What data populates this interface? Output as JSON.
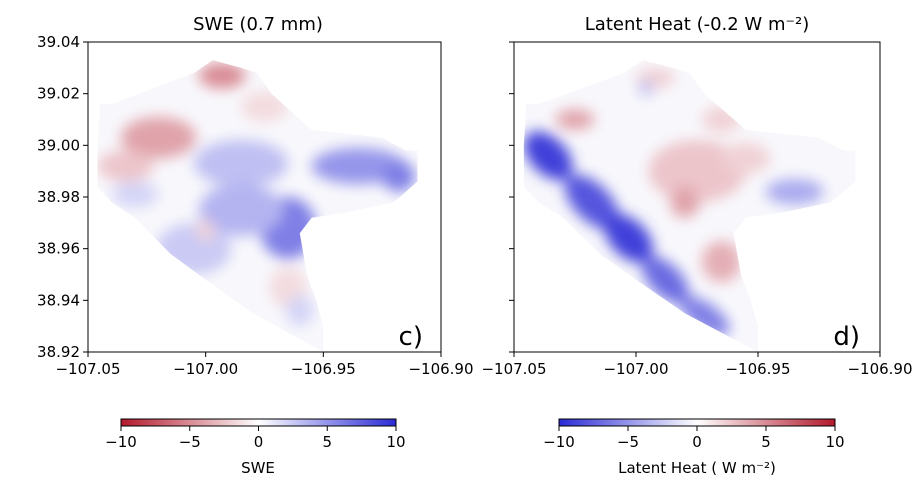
{
  "chart_data": [
    {
      "type": "heatmap",
      "panel_letter": "c)",
      "title": "SWE (0.7 mm)",
      "xlim": [
        -107.05,
        -106.9
      ],
      "ylim": [
        38.92,
        39.04
      ],
      "x_ticks": [
        -107.05,
        -107.0,
        -106.95,
        -106.9
      ],
      "y_ticks": [
        38.92,
        38.94,
        38.96,
        38.98,
        39.0,
        39.02,
        39.04
      ],
      "x_tick_labels": [
        "−107.05",
        "−107.00",
        "−106.95",
        "−106.90"
      ],
      "y_tick_labels": [
        "38.92",
        "38.94",
        "38.96",
        "38.98",
        "39.00",
        "39.02",
        "39.04"
      ],
      "domain_polygon": [
        [
          -107.045,
          39.016
        ],
        [
          -107.04,
          39.016
        ],
        [
          -107.005,
          39.028
        ],
        [
          -106.997,
          39.033
        ],
        [
          -106.985,
          39.03
        ],
        [
          -106.978,
          39.028
        ],
        [
          -106.972,
          39.02
        ],
        [
          -106.955,
          39.006
        ],
        [
          -106.925,
          39.003
        ],
        [
          -106.915,
          38.998
        ],
        [
          -106.91,
          38.998
        ],
        [
          -106.91,
          38.986
        ],
        [
          -106.92,
          38.978
        ],
        [
          -106.94,
          38.974
        ],
        [
          -106.955,
          38.972
        ],
        [
          -106.96,
          38.966
        ],
        [
          -106.957,
          38.95
        ],
        [
          -106.953,
          38.94
        ],
        [
          -106.95,
          38.93
        ],
        [
          -106.95,
          38.92
        ],
        [
          -106.96,
          38.925
        ],
        [
          -106.98,
          38.935
        ],
        [
          -107.0,
          38.948
        ],
        [
          -107.015,
          38.958
        ],
        [
          -107.03,
          38.972
        ],
        [
          -107.04,
          38.978
        ],
        [
          -107.046,
          38.984
        ],
        [
          -107.046,
          39.0
        ]
      ],
      "features": [
        {
          "x": -106.993,
          "y": 39.027,
          "rx": 0.01,
          "ry": 0.005,
          "value": -5
        },
        {
          "x": -107.02,
          "y": 39.003,
          "rx": 0.016,
          "ry": 0.008,
          "value": -4
        },
        {
          "x": -107.034,
          "y": 38.992,
          "rx": 0.012,
          "ry": 0.006,
          "value": -2.5
        },
        {
          "x": -106.975,
          "y": 39.015,
          "rx": 0.01,
          "ry": 0.006,
          "value": -1.5
        },
        {
          "x": -106.985,
          "y": 38.993,
          "rx": 0.02,
          "ry": 0.009,
          "value": 3
        },
        {
          "x": -106.935,
          "y": 38.992,
          "rx": 0.02,
          "ry": 0.007,
          "value": 5
        },
        {
          "x": -106.918,
          "y": 38.988,
          "rx": 0.007,
          "ry": 0.006,
          "value": 6
        },
        {
          "x": -106.965,
          "y": 38.968,
          "rx": 0.012,
          "ry": 0.012,
          "value": 6
        },
        {
          "x": -106.985,
          "y": 38.975,
          "rx": 0.018,
          "ry": 0.01,
          "value": 3.5
        },
        {
          "x": -107.005,
          "y": 38.96,
          "rx": 0.016,
          "ry": 0.01,
          "value": 2.5
        },
        {
          "x": -107.0,
          "y": 38.967,
          "rx": 0.004,
          "ry": 0.004,
          "value": -2
        },
        {
          "x": -106.965,
          "y": 38.945,
          "rx": 0.008,
          "ry": 0.008,
          "value": -1.5
        },
        {
          "x": -106.96,
          "y": 38.936,
          "rx": 0.006,
          "ry": 0.006,
          "value": 2
        },
        {
          "x": -107.03,
          "y": 38.981,
          "rx": 0.01,
          "ry": 0.005,
          "value": 2
        }
      ]
    },
    {
      "type": "heatmap",
      "panel_letter": "d)",
      "title": "Latent Heat (-0.2 W m⁻²)",
      "xlim": [
        -107.05,
        -106.9
      ],
      "ylim": [
        38.92,
        39.04
      ],
      "x_ticks": [
        -107.05,
        -107.0,
        -106.95,
        -106.9
      ],
      "y_ticks": [
        38.92,
        38.94,
        38.96,
        38.98,
        39.0,
        39.02,
        39.04
      ],
      "x_tick_labels": [
        "−107.05",
        "−107.00",
        "−106.95",
        "−106.90"
      ],
      "domain_polygon": [
        [
          -107.045,
          39.016
        ],
        [
          -107.04,
          39.016
        ],
        [
          -107.005,
          39.028
        ],
        [
          -106.997,
          39.033
        ],
        [
          -106.985,
          39.03
        ],
        [
          -106.978,
          39.028
        ],
        [
          -106.972,
          39.02
        ],
        [
          -106.955,
          39.006
        ],
        [
          -106.925,
          39.003
        ],
        [
          -106.915,
          38.998
        ],
        [
          -106.91,
          38.998
        ],
        [
          -106.91,
          38.986
        ],
        [
          -106.92,
          38.978
        ],
        [
          -106.94,
          38.974
        ],
        [
          -106.955,
          38.972
        ],
        [
          -106.96,
          38.966
        ],
        [
          -106.957,
          38.95
        ],
        [
          -106.953,
          38.94
        ],
        [
          -106.95,
          38.93
        ],
        [
          -106.95,
          38.92
        ],
        [
          -106.96,
          38.925
        ],
        [
          -106.98,
          38.935
        ],
        [
          -107.0,
          38.948
        ],
        [
          -107.015,
          38.958
        ],
        [
          -107.03,
          38.972
        ],
        [
          -107.04,
          38.978
        ],
        [
          -107.046,
          38.984
        ],
        [
          -107.046,
          39.0
        ]
      ],
      "features": [
        {
          "x": -107.036,
          "y": 38.996,
          "rx": 0.012,
          "ry": 0.007,
          "value": -9,
          "rot": 45
        },
        {
          "x": -107.018,
          "y": 38.978,
          "rx": 0.014,
          "ry": 0.007,
          "value": -8,
          "rot": 45
        },
        {
          "x": -107.003,
          "y": 38.964,
          "rx": 0.012,
          "ry": 0.007,
          "value": -9,
          "rot": 45
        },
        {
          "x": -106.988,
          "y": 38.948,
          "rx": 0.012,
          "ry": 0.006,
          "value": -7,
          "rot": 45
        },
        {
          "x": -106.972,
          "y": 38.934,
          "rx": 0.012,
          "ry": 0.005,
          "value": -6,
          "rot": 35
        },
        {
          "x": -106.975,
          "y": 38.99,
          "rx": 0.02,
          "ry": 0.012,
          "value": 2.5
        },
        {
          "x": -106.98,
          "y": 38.978,
          "rx": 0.006,
          "ry": 0.006,
          "value": 4
        },
        {
          "x": -106.955,
          "y": 38.995,
          "rx": 0.01,
          "ry": 0.006,
          "value": 2
        },
        {
          "x": -106.965,
          "y": 38.955,
          "rx": 0.008,
          "ry": 0.008,
          "value": 3.5
        },
        {
          "x": -107.025,
          "y": 39.01,
          "rx": 0.008,
          "ry": 0.004,
          "value": 4
        },
        {
          "x": -106.992,
          "y": 39.026,
          "rx": 0.008,
          "ry": 0.004,
          "value": 2
        },
        {
          "x": -106.996,
          "y": 39.022,
          "rx": 0.003,
          "ry": 0.003,
          "value": -3
        },
        {
          "x": -106.935,
          "y": 38.982,
          "rx": 0.012,
          "ry": 0.005,
          "value": -4
        },
        {
          "x": -106.965,
          "y": 39.01,
          "rx": 0.008,
          "ry": 0.005,
          "value": 2
        }
      ]
    }
  ],
  "colorbars": [
    {
      "label": "SWE",
      "vmin": -10,
      "vmax": 10,
      "low_color": "#b2182b",
      "high_color": "#2a2ad6",
      "ticks": [
        -10,
        -5,
        0,
        5,
        10
      ],
      "tick_labels": [
        "−10",
        "−5",
        "0",
        "5",
        "10"
      ]
    },
    {
      "label": "Latent Heat ( W m⁻²)",
      "vmin": -10,
      "vmax": 10,
      "low_color": "#2a2ad6",
      "high_color": "#b2182b",
      "ticks": [
        -10,
        -5,
        0,
        5,
        10
      ],
      "tick_labels": [
        "−10",
        "−5",
        "0",
        "5",
        "10"
      ]
    }
  ]
}
